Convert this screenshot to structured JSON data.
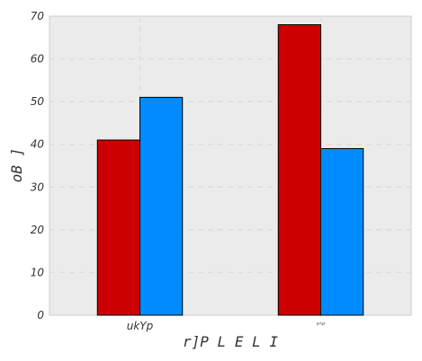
{
  "chart_data": {
    "type": "bar",
    "title": "",
    "xlabel": "r]P L E  L I",
    "ylabel": "oB ]",
    "categories": [
      "ukYp",
      "ʸᴬᵖ"
    ],
    "series": [
      {
        "values": [
          41,
          68
        ],
        "color": "#cc0000"
      },
      {
        "values": [
          51,
          39
        ],
        "color": "#008cff"
      }
    ],
    "ylim": [
      0,
      70
    ],
    "yticks": [
      0,
      10,
      20,
      30,
      40,
      50,
      60,
      70
    ],
    "grid": true,
    "plot_background": "#ebebeb",
    "grid_color": "#dddddd"
  }
}
